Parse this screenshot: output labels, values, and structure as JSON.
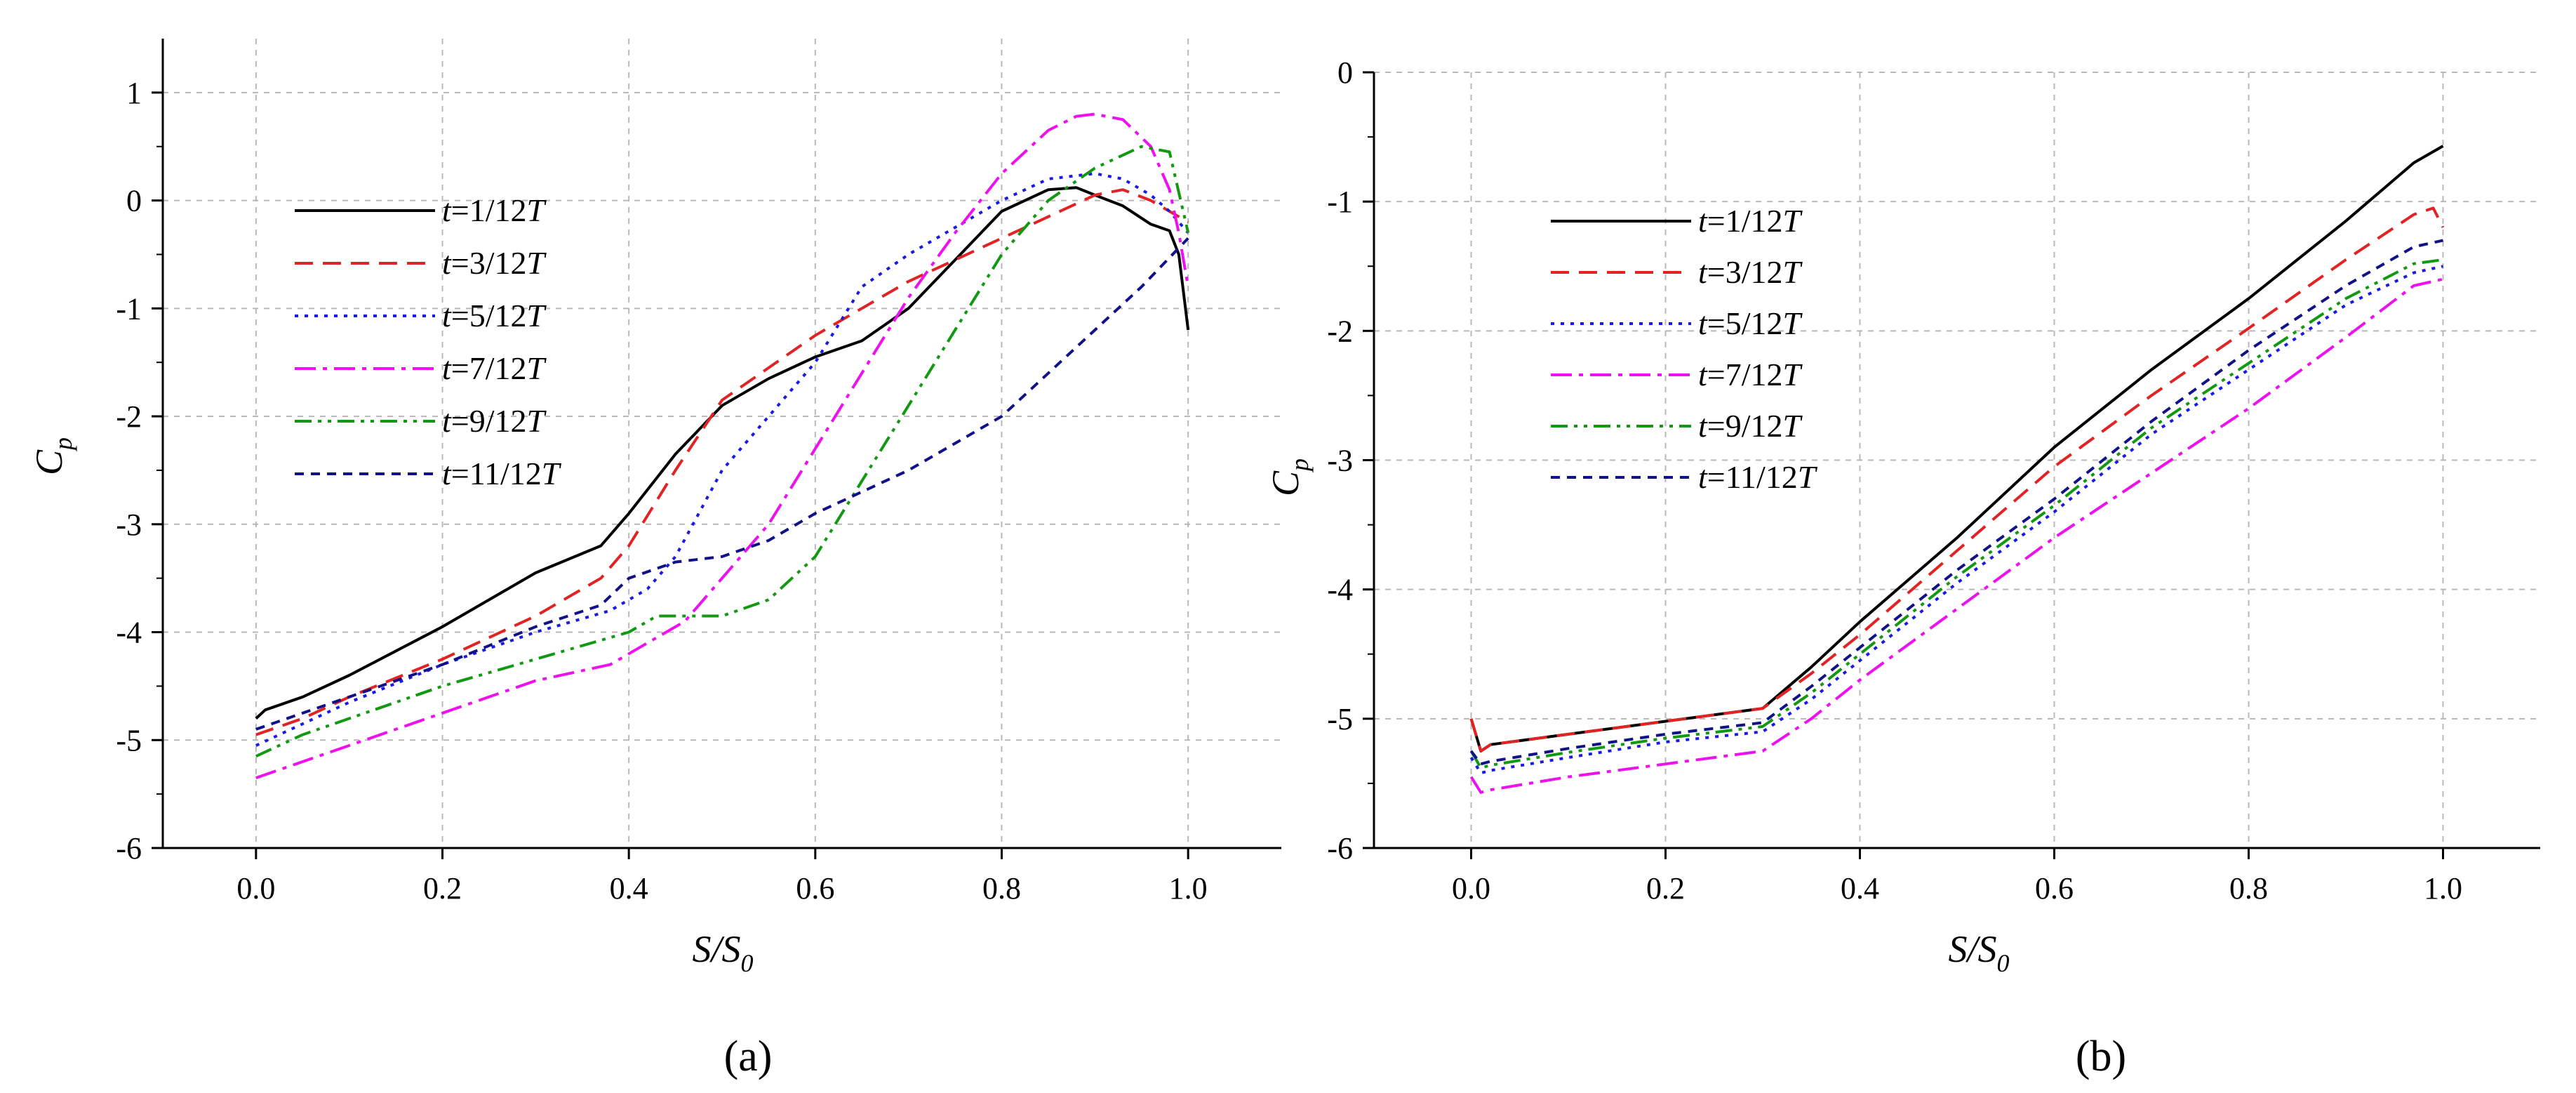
{
  "chart_data": [
    {
      "panel_label": "(a)",
      "type": "line",
      "xlabel": "S/S0",
      "xlabel_main": "S/S",
      "xlabel_sub": "0",
      "ylabel": "Cp",
      "ylabel_main": "C",
      "ylabel_sub": "p",
      "xlim": [
        -0.1,
        1.1
      ],
      "ylim": [
        -6,
        1.5
      ],
      "grid": true,
      "legend_position": "upper-left",
      "xticks": [
        0.0,
        0.2,
        0.4,
        0.6,
        0.8,
        1.0
      ],
      "xtick_labels": [
        "0.0",
        "0.2",
        "0.4",
        "0.6",
        "0.8",
        "1.0"
      ],
      "yticks": [
        -6,
        -5,
        -4,
        -3,
        -2,
        -1,
        0,
        1
      ],
      "ytick_labels": [
        "-6",
        "-5",
        "-4",
        "-3",
        "-2",
        "-1",
        "0",
        "1"
      ],
      "series": [
        {
          "name": "t=1/12T",
          "legend_prefix": "t",
          "legend_mid": "=1/12",
          "legend_suffix": "T",
          "color": "#000000",
          "dash": "solid",
          "x": [
            0.0,
            0.01,
            0.05,
            0.1,
            0.2,
            0.3,
            0.37,
            0.4,
            0.45,
            0.5,
            0.55,
            0.6,
            0.65,
            0.7,
            0.75,
            0.8,
            0.85,
            0.88,
            0.9,
            0.93,
            0.96,
            0.98,
            0.99,
            1.0
          ],
          "y": [
            -4.8,
            -4.72,
            -4.6,
            -4.4,
            -3.95,
            -3.45,
            -3.2,
            -2.9,
            -2.35,
            -1.9,
            -1.65,
            -1.45,
            -1.3,
            -1.0,
            -0.55,
            -0.1,
            0.1,
            0.12,
            0.05,
            -0.05,
            -0.22,
            -0.28,
            -0.5,
            -1.2
          ]
        },
        {
          "name": "t=3/12T",
          "legend_prefix": "t",
          "legend_mid": "=3/12",
          "legend_suffix": "T",
          "color": "#e32323",
          "dash": "dashed",
          "x": [
            0.0,
            0.05,
            0.1,
            0.2,
            0.3,
            0.37,
            0.4,
            0.45,
            0.5,
            0.55,
            0.6,
            0.65,
            0.7,
            0.75,
            0.8,
            0.85,
            0.9,
            0.93,
            0.96,
            0.98,
            1.0
          ],
          "y": [
            -4.95,
            -4.8,
            -4.6,
            -4.25,
            -3.85,
            -3.5,
            -3.2,
            -2.5,
            -1.85,
            -1.55,
            -1.25,
            -1.0,
            -0.75,
            -0.55,
            -0.35,
            -0.15,
            0.05,
            0.1,
            0.0,
            -0.1,
            -0.2
          ]
        },
        {
          "name": "t=5/12T",
          "legend_prefix": "t",
          "legend_mid": "=5/12",
          "legend_suffix": "T",
          "color": "#1a1ae6",
          "dash": "dotted",
          "x": [
            0.0,
            0.05,
            0.1,
            0.2,
            0.3,
            0.38,
            0.42,
            0.45,
            0.5,
            0.55,
            0.6,
            0.65,
            0.7,
            0.75,
            0.8,
            0.85,
            0.9,
            0.93,
            0.96,
            0.98,
            1.0
          ],
          "y": [
            -5.05,
            -4.85,
            -4.65,
            -4.3,
            -4.0,
            -3.8,
            -3.6,
            -3.3,
            -2.5,
            -2.0,
            -1.5,
            -0.8,
            -0.5,
            -0.25,
            0.0,
            0.2,
            0.25,
            0.2,
            0.05,
            -0.1,
            -0.3
          ]
        },
        {
          "name": "t=7/12T",
          "legend_prefix": "t",
          "legend_mid": "=7/12",
          "legend_suffix": "T",
          "color": "#ee10ee",
          "dash": "dashdot",
          "x": [
            0.0,
            0.05,
            0.1,
            0.2,
            0.3,
            0.38,
            0.42,
            0.46,
            0.5,
            0.55,
            0.6,
            0.65,
            0.7,
            0.75,
            0.8,
            0.85,
            0.88,
            0.9,
            0.93,
            0.96,
            0.98,
            0.99,
            1.0
          ],
          "y": [
            -5.35,
            -5.2,
            -5.05,
            -4.75,
            -4.45,
            -4.3,
            -4.1,
            -3.9,
            -3.5,
            -3.0,
            -2.3,
            -1.6,
            -0.9,
            -0.3,
            0.25,
            0.65,
            0.78,
            0.8,
            0.75,
            0.5,
            0.1,
            -0.3,
            -0.8
          ]
        },
        {
          "name": "t=9/12T",
          "legend_prefix": "t",
          "legend_mid": "=9/12",
          "legend_suffix": "T",
          "color": "#119911",
          "dash": "dashdotdot",
          "x": [
            0.0,
            0.05,
            0.1,
            0.2,
            0.3,
            0.4,
            0.43,
            0.46,
            0.5,
            0.55,
            0.6,
            0.65,
            0.7,
            0.75,
            0.8,
            0.85,
            0.9,
            0.95,
            0.98,
            1.0
          ],
          "y": [
            -5.15,
            -4.95,
            -4.8,
            -4.5,
            -4.25,
            -4.0,
            -3.85,
            -3.85,
            -3.85,
            -3.7,
            -3.3,
            -2.6,
            -1.9,
            -1.2,
            -0.5,
            0.0,
            0.3,
            0.5,
            0.45,
            -0.3
          ]
        },
        {
          "name": "t=11/12T",
          "legend_prefix": "t",
          "legend_mid": "=11/12",
          "legend_suffix": "T",
          "color": "#11118a",
          "dash": "shortdash",
          "x": [
            0.0,
            0.05,
            0.1,
            0.2,
            0.3,
            0.37,
            0.4,
            0.45,
            0.5,
            0.55,
            0.6,
            0.7,
            0.8,
            0.9,
            0.95,
            1.0
          ],
          "y": [
            -4.9,
            -4.75,
            -4.6,
            -4.3,
            -3.95,
            -3.75,
            -3.5,
            -3.35,
            -3.3,
            -3.15,
            -2.9,
            -2.5,
            -2.0,
            -1.2,
            -0.8,
            -0.35
          ]
        }
      ]
    },
    {
      "panel_label": "(b)",
      "type": "line",
      "xlabel": "S/S0",
      "xlabel_main": "S/S",
      "xlabel_sub": "0",
      "ylabel": "Cp",
      "ylabel_main": "C",
      "ylabel_sub": "p",
      "xlim": [
        -0.1,
        1.1
      ],
      "ylim": [
        -6,
        0
      ],
      "grid": true,
      "legend_position": "upper-left",
      "xticks": [
        0.0,
        0.2,
        0.4,
        0.6,
        0.8,
        1.0
      ],
      "xtick_labels": [
        "0.0",
        "0.2",
        "0.4",
        "0.6",
        "0.8",
        "1.0"
      ],
      "yticks": [
        -6,
        -5,
        -4,
        -3,
        -2,
        -1,
        0
      ],
      "ytick_labels": [
        "-6",
        "-5",
        "-4",
        "-3",
        "-2",
        "-1",
        "0"
      ],
      "series": [
        {
          "name": "t=1/12T",
          "legend_prefix": "t",
          "legend_mid": "=1/12",
          "legend_suffix": "T",
          "color": "#000000",
          "dash": "solid",
          "x": [
            0.0,
            0.01,
            0.02,
            0.1,
            0.2,
            0.3,
            0.35,
            0.4,
            0.5,
            0.6,
            0.7,
            0.8,
            0.9,
            0.97,
            1.0
          ],
          "y": [
            -5.0,
            -5.25,
            -5.2,
            -5.12,
            -5.02,
            -4.92,
            -4.6,
            -4.25,
            -3.6,
            -2.9,
            -2.3,
            -1.75,
            -1.15,
            -0.7,
            -0.57
          ]
        },
        {
          "name": "t=3/12T",
          "legend_prefix": "t",
          "legend_mid": "=3/12",
          "legend_suffix": "T",
          "color": "#e32323",
          "dash": "dashed",
          "x": [
            0.0,
            0.01,
            0.02,
            0.1,
            0.2,
            0.3,
            0.35,
            0.4,
            0.5,
            0.6,
            0.7,
            0.8,
            0.9,
            0.97,
            0.99,
            1.0
          ],
          "y": [
            -5.0,
            -5.25,
            -5.2,
            -5.12,
            -5.02,
            -4.92,
            -4.65,
            -4.35,
            -3.7,
            -3.05,
            -2.5,
            -1.98,
            -1.45,
            -1.1,
            -1.05,
            -1.2
          ]
        },
        {
          "name": "t=5/12T",
          "legend_prefix": "t",
          "legend_mid": "=5/12",
          "legend_suffix": "T",
          "color": "#1a1ae6",
          "dash": "dotted",
          "x": [
            0.0,
            0.01,
            0.02,
            0.1,
            0.2,
            0.3,
            0.35,
            0.4,
            0.5,
            0.6,
            0.7,
            0.8,
            0.9,
            0.97,
            1.0
          ],
          "y": [
            -5.3,
            -5.42,
            -5.4,
            -5.3,
            -5.18,
            -5.1,
            -4.85,
            -4.55,
            -3.95,
            -3.4,
            -2.8,
            -2.3,
            -1.8,
            -1.55,
            -1.5
          ]
        },
        {
          "name": "t=7/12T",
          "legend_prefix": "t",
          "legend_mid": "=7/12",
          "legend_suffix": "T",
          "color": "#ee10ee",
          "dash": "dashdot",
          "x": [
            0.0,
            0.01,
            0.02,
            0.1,
            0.2,
            0.3,
            0.35,
            0.4,
            0.5,
            0.6,
            0.7,
            0.8,
            0.9,
            0.97,
            1.0
          ],
          "y": [
            -5.45,
            -5.57,
            -5.55,
            -5.45,
            -5.35,
            -5.25,
            -5.0,
            -4.7,
            -4.15,
            -3.6,
            -3.1,
            -2.6,
            -2.05,
            -1.65,
            -1.6
          ]
        },
        {
          "name": "t=9/12T",
          "legend_prefix": "t",
          "legend_mid": "=9/12",
          "legend_suffix": "T",
          "color": "#119911",
          "dash": "dashdotdot",
          "x": [
            0.0,
            0.01,
            0.02,
            0.1,
            0.2,
            0.3,
            0.35,
            0.4,
            0.5,
            0.6,
            0.7,
            0.8,
            0.9,
            0.97,
            1.0
          ],
          "y": [
            -5.25,
            -5.38,
            -5.36,
            -5.26,
            -5.15,
            -5.06,
            -4.8,
            -4.5,
            -3.9,
            -3.35,
            -2.75,
            -2.25,
            -1.75,
            -1.48,
            -1.45
          ]
        },
        {
          "name": "t=11/12T",
          "legend_prefix": "t",
          "legend_mid": "=11/12",
          "legend_suffix": "T",
          "color": "#11118a",
          "dash": "shortdash",
          "x": [
            0.0,
            0.01,
            0.02,
            0.1,
            0.2,
            0.3,
            0.35,
            0.4,
            0.5,
            0.6,
            0.7,
            0.8,
            0.9,
            0.97,
            1.0
          ],
          "y": [
            -5.25,
            -5.35,
            -5.33,
            -5.23,
            -5.12,
            -5.03,
            -4.75,
            -4.45,
            -3.85,
            -3.3,
            -2.7,
            -2.15,
            -1.65,
            -1.35,
            -1.3
          ]
        }
      ]
    }
  ]
}
